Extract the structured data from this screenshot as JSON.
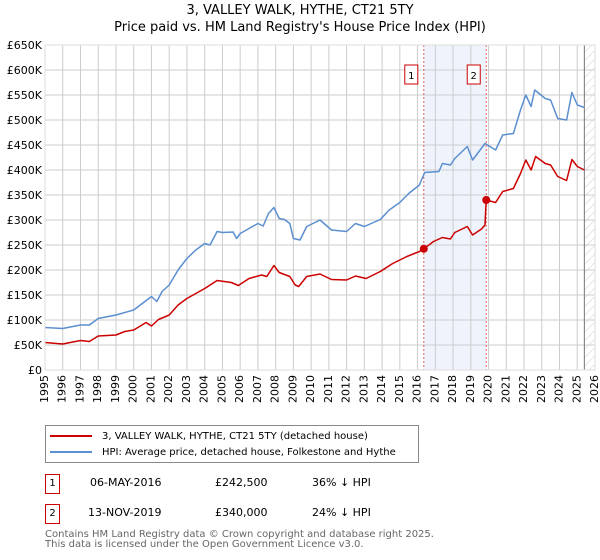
{
  "title_line1": "3, VALLEY WALK, HYTHE, CT21 5TY",
  "title_line2": "Price paid vs. HM Land Registry's House Price Index (HPI)",
  "colors": {
    "property": "#cc0000",
    "hpi": "#5b8fd0",
    "shade": "#eef3fc",
    "grid": "#cccccc"
  },
  "chart_data": {
    "type": "line",
    "xlim": [
      1995,
      2026
    ],
    "ylim": [
      0,
      650000
    ],
    "y_ticks": [
      0,
      50000,
      100000,
      150000,
      200000,
      250000,
      300000,
      350000,
      400000,
      450000,
      500000,
      550000,
      600000,
      650000
    ],
    "y_tick_labels": [
      "£0",
      "£50K",
      "£100K",
      "£150K",
      "£200K",
      "£250K",
      "£300K",
      "£350K",
      "£400K",
      "£450K",
      "£500K",
      "£550K",
      "£600K",
      "£650K"
    ],
    "x_ticks": [
      1995,
      1996,
      1997,
      1998,
      1999,
      2000,
      2001,
      2002,
      2003,
      2004,
      2005,
      2006,
      2007,
      2008,
      2009,
      2010,
      2011,
      2012,
      2013,
      2014,
      2015,
      2016,
      2017,
      2018,
      2019,
      2020,
      2021,
      2022,
      2023,
      2024,
      2025,
      2026
    ],
    "data_end": 2025.4,
    "shaded_range": [
      2016.35,
      2019.87
    ],
    "series": [
      {
        "name": "3, VALLEY WALK, HYTHE, CT21 5TY (detached house)",
        "color": "#cc0000",
        "x": [
          1995,
          1996,
          1997,
          1997.5,
          1998,
          1999,
          1999.5,
          2000,
          2000.7,
          2001,
          2001.4,
          2002,
          2002.5,
          2003,
          2003.5,
          2004,
          2004.7,
          2005.5,
          2005.9,
          2006.5,
          2007.2,
          2007.5,
          2007.9,
          2008.2,
          2008.8,
          2009.1,
          2009.3,
          2009.75,
          2010.5,
          2011.15,
          2012,
          2012.5,
          2013.1,
          2013.9,
          2014.6,
          2015.4,
          2016.1,
          2016.35,
          2016.9,
          2017.4,
          2017.85,
          2018.1,
          2018.8,
          2019.1,
          2019.6,
          2019.8,
          2019.87,
          2020.4,
          2020.8,
          2021.4,
          2021.8,
          2022.1,
          2022.4,
          2022.65,
          2023.2,
          2023.5,
          2023.9,
          2024.4,
          2024.7,
          2025,
          2025.4
        ],
        "y": [
          55000,
          52000,
          59000,
          57000,
          68000,
          70000,
          77000,
          80000,
          95000,
          88000,
          101000,
          110000,
          130000,
          143000,
          153000,
          163000,
          179000,
          175000,
          169000,
          183000,
          190000,
          187000,
          209000,
          195000,
          187000,
          170000,
          167000,
          187000,
          192000,
          181000,
          180000,
          188000,
          183000,
          197000,
          213000,
          227000,
          237000,
          242500,
          257000,
          265000,
          262000,
          275000,
          287000,
          270000,
          282000,
          290000,
          340000,
          335000,
          357000,
          363000,
          393000,
          420000,
          400000,
          427000,
          413000,
          410000,
          387000,
          379000,
          421000,
          407000,
          400000
        ]
      },
      {
        "name": "HPI: Average price, detached house, Folkestone and Hythe",
        "color": "#5b8fd0",
        "x": [
          1995,
          1996,
          1997,
          1997.5,
          1998,
          1999,
          2000,
          2001,
          2001.3,
          2001.6,
          2002,
          2002.5,
          2003,
          2003.5,
          2004,
          2004.3,
          2004.7,
          2005,
          2005.6,
          2005.8,
          2006,
          2006.5,
          2007,
          2007.3,
          2007.6,
          2007.9,
          2008.2,
          2008.5,
          2008.8,
          2009,
          2009.37,
          2009.75,
          2010.5,
          2011.15,
          2012,
          2012.5,
          2013,
          2013.9,
          2014.4,
          2015,
          2015.5,
          2016.1,
          2016.4,
          2017.2,
          2017.4,
          2017.85,
          2018.1,
          2018.8,
          2019.1,
          2019.8,
          2020.4,
          2020.8,
          2021.4,
          2021.8,
          2022.1,
          2022.4,
          2022.6,
          2023.2,
          2023.5,
          2023.9,
          2024.4,
          2024.7,
          2025,
          2025.4
        ],
        "y": [
          85000,
          83000,
          90000,
          90000,
          103000,
          110000,
          120000,
          147000,
          137000,
          157000,
          170000,
          200000,
          223000,
          240000,
          253000,
          250000,
          277000,
          275000,
          276000,
          263000,
          273000,
          283000,
          293000,
          288000,
          313000,
          325000,
          303000,
          301000,
          293000,
          263000,
          260000,
          287000,
          300000,
          280000,
          277000,
          293000,
          287000,
          301000,
          320000,
          335000,
          353000,
          370000,
          395000,
          397000,
          413000,
          410000,
          423000,
          447000,
          420000,
          453000,
          440000,
          470000,
          473000,
          520000,
          550000,
          527000,
          560000,
          543000,
          540000,
          503000,
          500000,
          555000,
          530000,
          525000
        ]
      }
    ],
    "annotations": [
      {
        "label": "1",
        "x": 2016.35,
        "y": 242500
      },
      {
        "label": "2",
        "x": 2019.87,
        "y": 340000
      }
    ]
  },
  "legend": {
    "property": "3, VALLEY WALK, HYTHE, CT21 5TY (detached house)",
    "hpi": "HPI: Average price, detached house, Folkestone and Hythe"
  },
  "transactions": [
    {
      "num": "1",
      "date": "06-MAY-2016",
      "price": "£242,500",
      "diff": "36% ↓ HPI"
    },
    {
      "num": "2",
      "date": "13-NOV-2019",
      "price": "£340,000",
      "diff": "24% ↓ HPI"
    }
  ],
  "footer_line1": "Contains HM Land Registry data © Crown copyright and database right 2025.",
  "footer_line2": "This data is licensed under the Open Government Licence v3.0."
}
